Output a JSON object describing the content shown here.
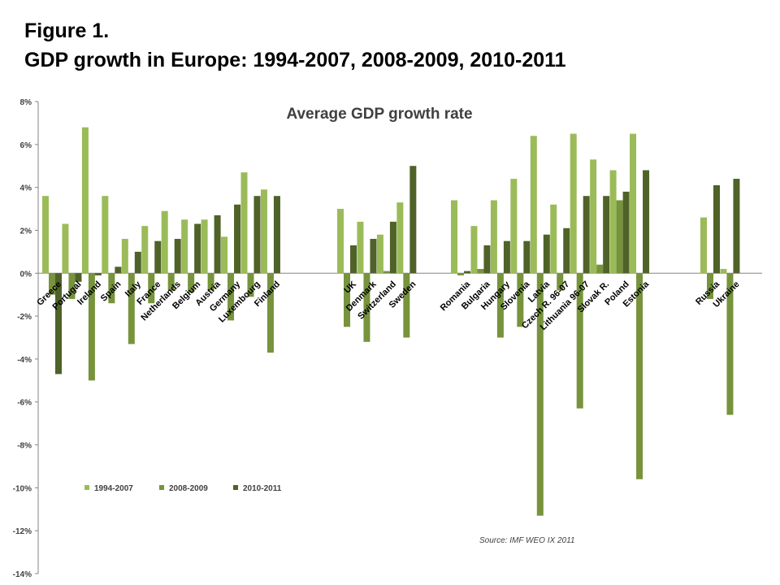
{
  "figure": {
    "label": "Figure 1.",
    "heading": "GDP growth in Europe: 1994-2007, 2008-2009, 2010-2011"
  },
  "chart_data": {
    "type": "bar",
    "title": "Average GDP growth rate",
    "source": "Source: IMF WEO IX 2011",
    "xlabel": "",
    "ylabel": "",
    "ylim": [
      -14,
      8
    ],
    "yticks": [
      "8%",
      "6%",
      "4%",
      "2%",
      "0%",
      "-2%",
      "-4%",
      "-6%",
      "-8%",
      "-10%",
      "-12%",
      "-14%"
    ],
    "grid": false,
    "legend_position": "bottom-left",
    "categories": [
      "Greece",
      "Portugal",
      "Ireland",
      "Spain",
      "Italy",
      "France",
      "Netherlands",
      "Belgium",
      "Austria",
      "Germany",
      "Luxembourg",
      "Finland",
      "UK",
      "Denmark",
      "Switzerland",
      "Sweden",
      "Romania",
      "Bulgaria",
      "Hungary",
      "Slovenia",
      "Latvia",
      "Czech R. 96-07",
      "Lithuania 96-07",
      "Slovak R.",
      "Poland",
      "Estonia",
      "Russia",
      "Ukraine"
    ],
    "series": [
      {
        "name": "1994-2007",
        "color": "#9bbb59",
        "values": [
          3.6,
          2.3,
          6.8,
          3.6,
          1.6,
          2.2,
          2.9,
          2.5,
          2.5,
          1.7,
          4.7,
          3.9,
          3.0,
          2.4,
          1.8,
          3.3,
          3.4,
          2.2,
          3.4,
          4.4,
          6.4,
          3.2,
          6.5,
          5.3,
          4.8,
          6.5,
          2.6,
          0.2
        ]
      },
      {
        "name": "2008-2009",
        "color": "#77933c",
        "values": [
          -1.0,
          -1.2,
          -5.0,
          -1.4,
          -3.3,
          -1.4,
          -0.8,
          -0.9,
          -0.8,
          -2.2,
          -1.1,
          -3.7,
          -2.5,
          -3.2,
          0.1,
          -3.0,
          -0.1,
          0.2,
          -3.0,
          -2.5,
          -11.3,
          -0.8,
          -6.3,
          0.4,
          3.4,
          -9.6,
          -1.2,
          -6.6
        ]
      },
      {
        "name": "2010-2011",
        "color": "#4f6228",
        "values": [
          -4.7,
          -0.4,
          -0.1,
          0.3,
          1.0,
          1.5,
          1.6,
          2.3,
          2.7,
          3.2,
          3.6,
          3.6,
          1.3,
          1.6,
          2.4,
          5.0,
          0.1,
          1.3,
          1.5,
          1.5,
          1.8,
          2.1,
          3.6,
          3.6,
          3.8,
          4.8,
          4.1,
          4.4
        ]
      }
    ]
  }
}
